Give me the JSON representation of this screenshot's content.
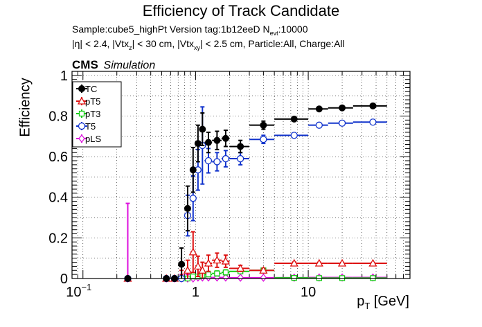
{
  "chart_data": {
    "type": "scatter",
    "title": "Efficiency of Track Candidate",
    "subtitle1": {
      "prefix": "Sample:cube5_highPt   Version tag:1b12eeD  N",
      "sub": "evt",
      "suffix": ":10000"
    },
    "subtitle2": {
      "p1": "|η| < 2.4, |Vtx",
      "s1": "z",
      "p2": "| < 30 cm, |Vtx",
      "s2": "xy",
      "p3": "| < 2.5 cm, Particle:All, Charge:All"
    },
    "cms_label": "CMS",
    "sim_label": "Simulation",
    "ylabel": "Efficiency",
    "xlabel": {
      "main": "p",
      "sub": "T",
      "rest": " [GeV]"
    },
    "xscale": "log",
    "xlim": [
      0.08,
      80
    ],
    "ylim": [
      0,
      1.02
    ],
    "grid": true,
    "legend_position": "top-left",
    "xticks": [
      {
        "v": 0.1,
        "base": "10",
        "exp": "−1"
      },
      {
        "v": 1,
        "base": "1",
        "exp": ""
      },
      {
        "v": 10,
        "base": "10",
        "exp": ""
      }
    ],
    "yticks": [
      {
        "v": 0,
        "label": "0"
      },
      {
        "v": 0.2,
        "label": "0.2"
      },
      {
        "v": 0.4,
        "label": "0.4"
      },
      {
        "v": 0.6,
        "label": "0.6"
      },
      {
        "v": 0.8,
        "label": "0.8"
      },
      {
        "v": 1.0,
        "label": "1"
      }
    ],
    "series": [
      {
        "name": "TC",
        "color": "#000000",
        "marker": "filled-circle",
        "points": [
          {
            "x": 0.25,
            "xl": 0.248,
            "xh": 0.252,
            "y": 0.0,
            "e": 0.0
          },
          {
            "x": 0.55,
            "xl": 0.54,
            "xh": 0.56,
            "y": 0.0,
            "e": 0.0
          },
          {
            "x": 0.65,
            "xl": 0.64,
            "xh": 0.66,
            "y": 0.0,
            "e": 0.0
          },
          {
            "x": 0.75,
            "xl": 0.74,
            "xh": 0.76,
            "y": 0.07,
            "e": 0.08
          },
          {
            "x": 0.85,
            "xl": 0.84,
            "xh": 0.86,
            "y": 0.345,
            "e": 0.11
          },
          {
            "x": 0.95,
            "xl": 0.94,
            "xh": 0.96,
            "y": 0.535,
            "e": 0.11
          },
          {
            "x": 1.05,
            "xl": 1.0,
            "xh": 1.1,
            "y": 0.665,
            "e": 0.09
          },
          {
            "x": 1.15,
            "xl": 1.1,
            "xh": 1.2,
            "y": 0.735,
            "e": 0.08
          },
          {
            "x": 1.3,
            "xl": 1.2,
            "xh": 1.4,
            "y": 0.67,
            "e": 0.05
          },
          {
            "x": 1.55,
            "xl": 1.4,
            "xh": 1.7,
            "y": 0.68,
            "e": 0.045
          },
          {
            "x": 1.85,
            "xl": 1.7,
            "xh": 2.0,
            "y": 0.69,
            "e": 0.04
          },
          {
            "x": 2.5,
            "xl": 2.0,
            "xh": 3.0,
            "y": 0.65,
            "e": 0.03
          },
          {
            "x": 4.0,
            "xl": 3.0,
            "xh": 5.0,
            "y": 0.755,
            "e": 0.02
          },
          {
            "x": 7.5,
            "xl": 5.0,
            "xh": 10.0,
            "y": 0.785,
            "e": 0.01
          },
          {
            "x": 12.5,
            "xl": 10.0,
            "xh": 15.0,
            "y": 0.835,
            "e": 0.01
          },
          {
            "x": 20.0,
            "xl": 15.0,
            "xh": 25.0,
            "y": 0.84,
            "e": 0.008
          },
          {
            "x": 37.5,
            "xl": 25.0,
            "xh": 50.0,
            "y": 0.85,
            "e": 0.006
          }
        ]
      },
      {
        "name": "pT5",
        "color": "#dd1111",
        "marker": "open-triangle",
        "points": [
          {
            "x": 0.25,
            "xl": 0.248,
            "xh": 0.252,
            "y": 0.0,
            "e": 0.0
          },
          {
            "x": 0.55,
            "xl": 0.54,
            "xh": 0.56,
            "y": 0.0,
            "e": 0.0
          },
          {
            "x": 0.65,
            "xl": 0.64,
            "xh": 0.66,
            "y": 0.0,
            "e": 0.0
          },
          {
            "x": 0.75,
            "xl": 0.74,
            "xh": 0.76,
            "y": 0.01,
            "e": 0.03
          },
          {
            "x": 0.85,
            "xl": 0.84,
            "xh": 0.86,
            "y": 0.04,
            "e": 0.05
          },
          {
            "x": 0.95,
            "xl": 0.94,
            "xh": 0.96,
            "y": 0.13,
            "e": 0.1
          },
          {
            "x": 1.05,
            "xl": 1.0,
            "xh": 1.1,
            "y": 0.06,
            "e": 0.05
          },
          {
            "x": 1.15,
            "xl": 1.1,
            "xh": 1.2,
            "y": 0.04,
            "e": 0.04
          },
          {
            "x": 1.3,
            "xl": 1.2,
            "xh": 1.4,
            "y": 0.075,
            "e": 0.04
          },
          {
            "x": 1.55,
            "xl": 1.4,
            "xh": 1.7,
            "y": 0.09,
            "e": 0.035
          },
          {
            "x": 1.85,
            "xl": 1.7,
            "xh": 2.0,
            "y": 0.085,
            "e": 0.03
          },
          {
            "x": 2.5,
            "xl": 2.0,
            "xh": 3.0,
            "y": 0.05,
            "e": 0.015
          },
          {
            "x": 4.0,
            "xl": 3.0,
            "xh": 5.0,
            "y": 0.04,
            "e": 0.01
          },
          {
            "x": 7.5,
            "xl": 5.0,
            "xh": 10.0,
            "y": 0.075,
            "e": 0.006
          },
          {
            "x": 12.5,
            "xl": 10.0,
            "xh": 15.0,
            "y": 0.075,
            "e": 0.005
          },
          {
            "x": 20.0,
            "xl": 15.0,
            "xh": 25.0,
            "y": 0.075,
            "e": 0.004
          },
          {
            "x": 37.5,
            "xl": 25.0,
            "xh": 50.0,
            "y": 0.075,
            "e": 0.004
          }
        ]
      },
      {
        "name": "pT3",
        "color": "#11cc11",
        "marker": "open-square",
        "points": [
          {
            "x": 0.75,
            "xl": 0.74,
            "xh": 0.76,
            "y": 0.0,
            "e": 0.01
          },
          {
            "x": 0.85,
            "xl": 0.84,
            "xh": 0.86,
            "y": 0.0,
            "e": 0.01
          },
          {
            "x": 0.95,
            "xl": 0.94,
            "xh": 0.96,
            "y": 0.01,
            "e": 0.01
          },
          {
            "x": 1.05,
            "xl": 1.0,
            "xh": 1.1,
            "y": 0.01,
            "e": 0.01
          },
          {
            "x": 1.15,
            "xl": 1.1,
            "xh": 1.2,
            "y": 0.015,
            "e": 0.01
          },
          {
            "x": 1.3,
            "xl": 1.2,
            "xh": 1.4,
            "y": 0.02,
            "e": 0.01
          },
          {
            "x": 1.55,
            "xl": 1.4,
            "xh": 1.7,
            "y": 0.025,
            "e": 0.012
          },
          {
            "x": 1.85,
            "xl": 1.7,
            "xh": 2.0,
            "y": 0.03,
            "e": 0.012
          },
          {
            "x": 2.5,
            "xl": 2.0,
            "xh": 3.0,
            "y": 0.035,
            "e": 0.01
          },
          {
            "x": 4.0,
            "xl": 3.0,
            "xh": 5.0,
            "y": 0.04,
            "e": 0.008
          },
          {
            "x": 7.5,
            "xl": 5.0,
            "xh": 10.0,
            "y": 0.003,
            "e": 0.003
          },
          {
            "x": 12.5,
            "xl": 10.0,
            "xh": 15.0,
            "y": 0.002,
            "e": 0.002
          },
          {
            "x": 20.0,
            "xl": 15.0,
            "xh": 25.0,
            "y": 0.002,
            "e": 0.002
          },
          {
            "x": 37.5,
            "xl": 25.0,
            "xh": 50.0,
            "y": 0.002,
            "e": 0.002
          }
        ]
      },
      {
        "name": "T5",
        "color": "#1133cc",
        "marker": "open-circle",
        "points": [
          {
            "x": 0.25,
            "xl": 0.248,
            "xh": 0.252,
            "y": 0.0,
            "e": 0.0
          },
          {
            "x": 0.55,
            "xl": 0.54,
            "xh": 0.56,
            "y": 0.0,
            "e": 0.0
          },
          {
            "x": 0.65,
            "xl": 0.64,
            "xh": 0.66,
            "y": 0.0,
            "e": 0.0
          },
          {
            "x": 0.75,
            "xl": 0.74,
            "xh": 0.76,
            "y": 0.0,
            "e": 0.0
          },
          {
            "x": 0.85,
            "xl": 0.84,
            "xh": 0.86,
            "y": 0.31,
            "e": 0.1
          },
          {
            "x": 0.95,
            "xl": 0.94,
            "xh": 0.96,
            "y": 0.395,
            "e": 0.11
          },
          {
            "x": 1.05,
            "xl": 1.0,
            "xh": 1.1,
            "y": 0.535,
            "e": 0.1
          },
          {
            "x": 1.15,
            "xl": 1.1,
            "xh": 1.2,
            "y": 0.655,
            "e": 0.19
          },
          {
            "x": 1.3,
            "xl": 1.2,
            "xh": 1.4,
            "y": 0.58,
            "e": 0.06
          },
          {
            "x": 1.55,
            "xl": 1.4,
            "xh": 1.7,
            "y": 0.575,
            "e": 0.045
          },
          {
            "x": 1.85,
            "xl": 1.7,
            "xh": 2.0,
            "y": 0.59,
            "e": 0.04
          },
          {
            "x": 2.5,
            "xl": 2.0,
            "xh": 3.0,
            "y": 0.59,
            "e": 0.03
          },
          {
            "x": 4.0,
            "xl": 3.0,
            "xh": 5.0,
            "y": 0.685,
            "e": 0.02
          },
          {
            "x": 7.5,
            "xl": 5.0,
            "xh": 10.0,
            "y": 0.705,
            "e": 0.01
          },
          {
            "x": 12.5,
            "xl": 10.0,
            "xh": 15.0,
            "y": 0.755,
            "e": 0.01
          },
          {
            "x": 20.0,
            "xl": 15.0,
            "xh": 25.0,
            "y": 0.765,
            "e": 0.008
          },
          {
            "x": 37.5,
            "xl": 25.0,
            "xh": 50.0,
            "y": 0.77,
            "e": 0.006
          }
        ]
      },
      {
        "name": "pLS",
        "color": "#dd11dd",
        "marker": "open-diamond",
        "points": [
          {
            "x": 0.25,
            "xl": 0.248,
            "xh": 0.252,
            "y": 0.0,
            "e": 0.37
          },
          {
            "x": 0.55,
            "xl": 0.54,
            "xh": 0.56,
            "y": 0.0,
            "e": 0.0
          },
          {
            "x": 0.65,
            "xl": 0.64,
            "xh": 0.66,
            "y": 0.0,
            "e": 0.0
          },
          {
            "x": 0.75,
            "xl": 0.74,
            "xh": 0.76,
            "y": 0.0,
            "e": 0.02
          },
          {
            "x": 0.85,
            "xl": 0.84,
            "xh": 0.86,
            "y": 0.0,
            "e": 0.02
          },
          {
            "x": 0.95,
            "xl": 0.94,
            "xh": 0.96,
            "y": 0.0,
            "e": 0.015
          },
          {
            "x": 1.05,
            "xl": 1.0,
            "xh": 1.1,
            "y": 0.005,
            "e": 0.01
          },
          {
            "x": 1.15,
            "xl": 1.1,
            "xh": 1.2,
            "y": 0.005,
            "e": 0.01
          },
          {
            "x": 1.3,
            "xl": 1.2,
            "xh": 1.4,
            "y": 0.005,
            "e": 0.008
          },
          {
            "x": 1.55,
            "xl": 1.4,
            "xh": 1.7,
            "y": 0.005,
            "e": 0.006
          },
          {
            "x": 1.85,
            "xl": 1.7,
            "xh": 2.0,
            "y": 0.005,
            "e": 0.006
          },
          {
            "x": 2.5,
            "xl": 2.0,
            "xh": 3.0,
            "y": 0.004,
            "e": 0.004
          },
          {
            "x": 4.0,
            "xl": 3.0,
            "xh": 5.0,
            "y": 0.004,
            "e": 0.003
          },
          {
            "x": 7.5,
            "xl": 5.0,
            "xh": 10.0,
            "y": 0.004,
            "e": 0.002
          },
          {
            "x": 12.5,
            "xl": 10.0,
            "xh": 15.0,
            "y": 0.005,
            "e": 0.002
          },
          {
            "x": 20.0,
            "xl": 15.0,
            "xh": 25.0,
            "y": 0.005,
            "e": 0.002
          },
          {
            "x": 37.5,
            "xl": 25.0,
            "xh": 50.0,
            "y": 0.005,
            "e": 0.002
          }
        ]
      }
    ]
  }
}
